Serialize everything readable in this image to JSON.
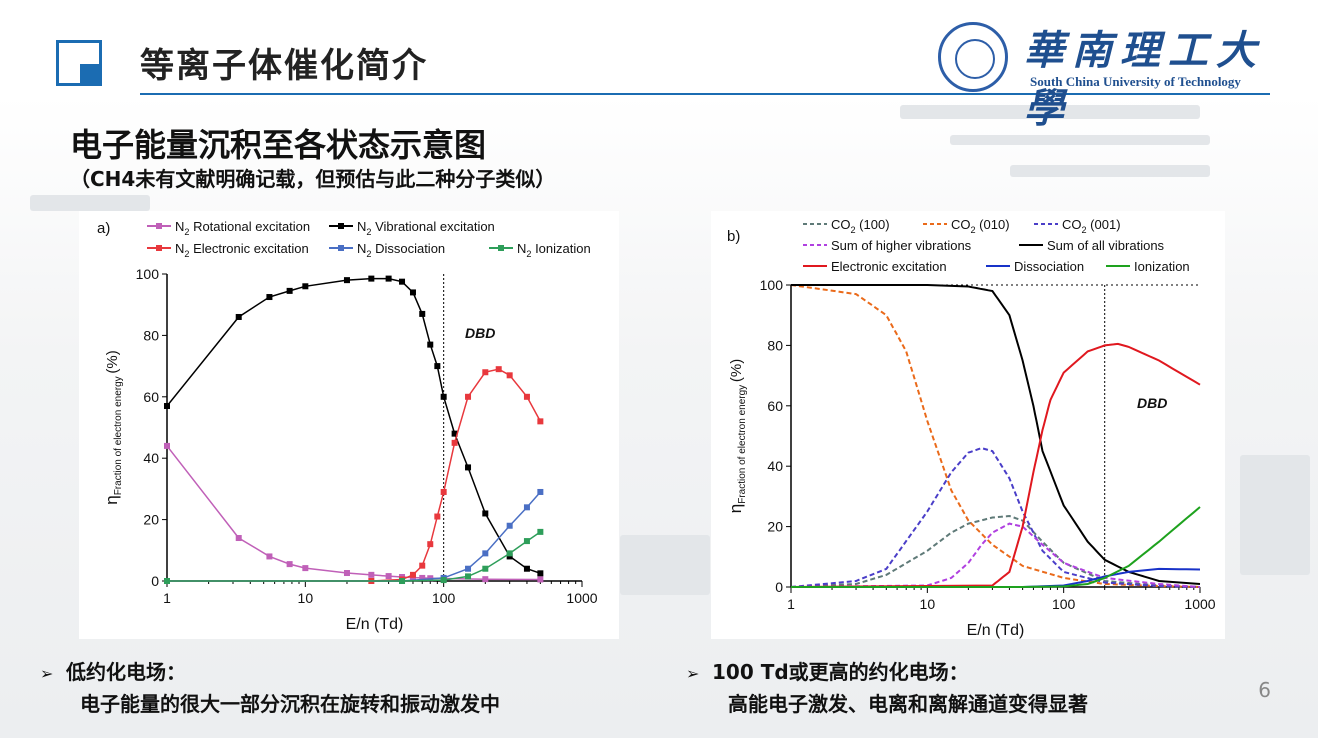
{
  "header": {
    "title": "等离子体催化简介",
    "logo_cn": "華南理工大學",
    "logo_en": "South China University of Technology"
  },
  "slide": {
    "subtitle": "电子能量沉积至各状态示意图",
    "note": "（CH4未有文献明确记载，但预估与此二种分子类似）",
    "bullet_left_head": "低约化电场：",
    "bullet_left_body": "电子能量的很大一部分沉积在旋转和振动激发中",
    "bullet_right_head": "100 Td或更高的约化电场：",
    "bullet_right_body": "高能电子激发、电离和离解通道变得显著",
    "page_number": "6"
  },
  "chart_data": [
    {
      "type": "line",
      "panel_label": "a)",
      "xlabel": "E/n (Td)",
      "ylabel": "ηFraction of electron energy (%)",
      "xscale": "log",
      "xlim": [
        1,
        1000
      ],
      "ylim": [
        0,
        100
      ],
      "xticks": [
        "1",
        "10",
        "100",
        "1000"
      ],
      "yticks": [
        "0",
        "20",
        "40",
        "60",
        "80",
        "100"
      ],
      "annotation": "DBD",
      "vline_x": 100,
      "legend": "top",
      "series": [
        {
          "name": "N2 Rotational excitation",
          "color": "#c060b8",
          "x": [
            1,
            3.3,
            5.5,
            7.7,
            10,
            20,
            30,
            40,
            50,
            60,
            70,
            80,
            100,
            200,
            500
          ],
          "y": [
            44,
            14,
            8,
            5.5,
            4.2,
            2.6,
            2,
            1.6,
            1.3,
            1.1,
            1,
            0.9,
            0.8,
            0.6,
            0.5
          ]
        },
        {
          "name": "N2 Vibrational excitation",
          "color": "#000000",
          "x": [
            1,
            3.3,
            5.5,
            7.7,
            10,
            20,
            30,
            40,
            50,
            60,
            70,
            80,
            90,
            100,
            120,
            150,
            200,
            300,
            400,
            500
          ],
          "y": [
            57,
            86,
            92.5,
            94.5,
            96,
            98,
            98.5,
            98.5,
            97.5,
            94,
            87,
            77,
            70,
            60,
            48,
            37,
            22,
            8,
            4,
            2.5
          ]
        },
        {
          "name": "N2 Electronic excitation",
          "color": "#e8383d",
          "x": [
            1,
            30,
            50,
            60,
            70,
            80,
            90,
            100,
            120,
            150,
            200,
            250,
            300,
            400,
            500
          ],
          "y": [
            0,
            0,
            0.5,
            2,
            5,
            12,
            21,
            29,
            45,
            60,
            68,
            69,
            67,
            60,
            52
          ]
        },
        {
          "name": "N2 Dissociation",
          "color": "#4a6fc4",
          "x": [
            1,
            50,
            100,
            150,
            200,
            300,
            400,
            500
          ],
          "y": [
            0,
            0,
            1,
            4,
            9,
            18,
            24,
            29
          ]
        },
        {
          "name": "N2 Ionization",
          "color": "#2e9e5a",
          "x": [
            1,
            50,
            100,
            150,
            200,
            300,
            400,
            500
          ],
          "y": [
            0,
            0,
            0.3,
            1.5,
            4,
            9,
            13,
            16
          ]
        }
      ]
    },
    {
      "type": "line",
      "panel_label": "b)",
      "xlabel": "E/n (Td)",
      "ylabel": "ηFraction of electron energy (%)",
      "xscale": "log",
      "xlim": [
        1,
        1000
      ],
      "ylim": [
        0,
        100
      ],
      "xticks": [
        "1",
        "10",
        "100",
        "1000"
      ],
      "yticks": [
        "0",
        "20",
        "40",
        "60",
        "80",
        "100"
      ],
      "annotation": "DBD",
      "vline_x": 200,
      "legend": "top",
      "series": [
        {
          "name": "CO2 (100)",
          "color": "#5f7a78",
          "dash": true,
          "x": [
            1,
            3,
            5,
            10,
            15,
            20,
            30,
            40,
            50,
            70,
            100,
            200,
            500,
            1000
          ],
          "y": [
            0,
            1,
            4,
            12,
            18,
            21,
            23,
            23.5,
            22,
            15,
            8,
            2,
            0.5,
            0
          ]
        },
        {
          "name": "CO2 (010)",
          "color": "#ea6a1a",
          "dash": true,
          "x": [
            1,
            3,
            5,
            7,
            10,
            15,
            20,
            30,
            50,
            100,
            200,
            500,
            1000
          ],
          "y": [
            100,
            97,
            90,
            78,
            55,
            32,
            22,
            14,
            7,
            3,
            1,
            0.3,
            0
          ]
        },
        {
          "name": "CO2 (001)",
          "color": "#4a3ec8",
          "dash": true,
          "x": [
            1,
            3,
            5,
            10,
            15,
            20,
            25,
            30,
            40,
            50,
            70,
            100,
            200,
            500,
            1000
          ],
          "y": [
            0,
            2,
            6,
            25,
            38,
            44.5,
            46,
            45,
            36,
            25,
            12,
            5,
            1.5,
            0.3,
            0
          ]
        },
        {
          "name": "Sum of higher vibrations",
          "color": "#b040e0",
          "dash": true,
          "x": [
            1,
            10,
            15,
            20,
            25,
            30,
            40,
            50,
            70,
            100,
            200,
            500,
            1000
          ],
          "y": [
            0,
            0.5,
            3,
            8,
            14,
            18,
            21,
            20,
            14,
            8,
            3,
            1,
            0
          ]
        },
        {
          "name": "Sum of all vibrations",
          "color": "#000000",
          "x": [
            1,
            10,
            20,
            30,
            40,
            50,
            60,
            70,
            100,
            150,
            200,
            300,
            500,
            1000
          ],
          "y": [
            100,
            100,
            99.5,
            98,
            90,
            75,
            60,
            45,
            27,
            15,
            9,
            5,
            2,
            1
          ]
        },
        {
          "name": "Electronic excitation",
          "color": "#e0181f",
          "x": [
            1,
            30,
            40,
            50,
            60,
            70,
            80,
            100,
            150,
            200,
            250,
            300,
            500,
            1000
          ],
          "y": [
            0,
            0.5,
            5,
            20,
            38,
            52,
            62,
            71,
            78,
            80,
            80.5,
            79.5,
            75,
            67
          ]
        },
        {
          "name": "Dissociation",
          "color": "#1832c8",
          "x": [
            1,
            50,
            100,
            150,
            200,
            300,
            500,
            1000
          ],
          "y": [
            0,
            0,
            0.5,
            2,
            3.5,
            5,
            6,
            5.8
          ]
        },
        {
          "name": "Ionization",
          "color": "#1ea21e",
          "x": [
            1,
            50,
            100,
            150,
            200,
            300,
            500,
            1000
          ],
          "y": [
            0,
            0,
            0.2,
            1,
            3,
            7,
            15,
            26.5
          ]
        }
      ]
    }
  ]
}
